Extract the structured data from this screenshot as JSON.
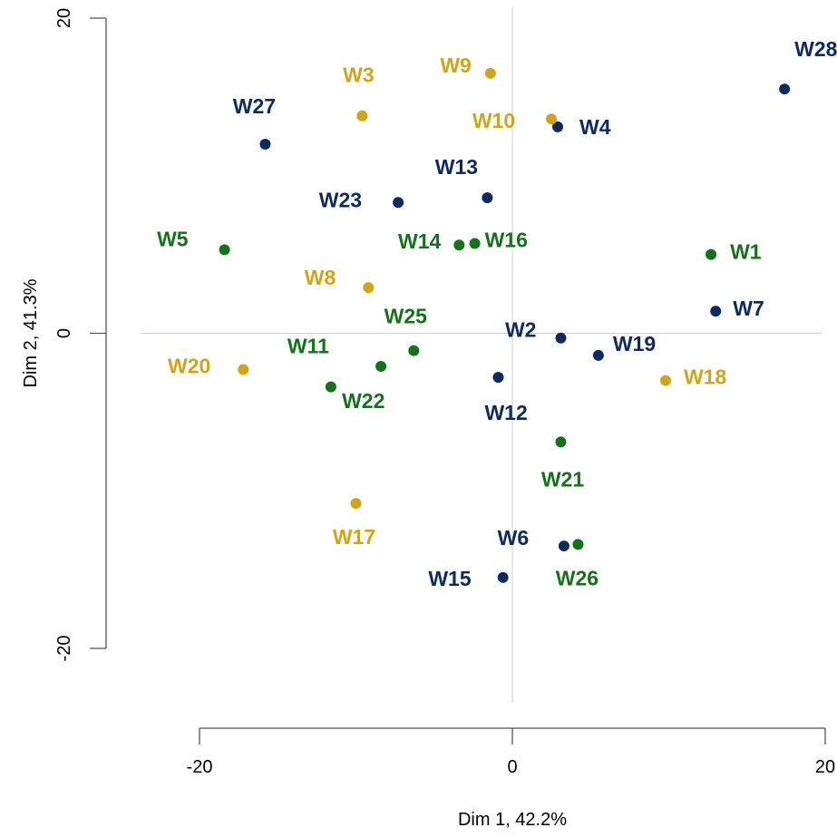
{
  "chart_data": {
    "type": "scatter",
    "xlabel": "Dim 1, 42.2%",
    "ylabel": "Dim 2, 41.3%",
    "xlim": [
      -20,
      20
    ],
    "ylim": [
      -20,
      20
    ],
    "xticks": [
      -20,
      0,
      20
    ],
    "yticks": [
      -20,
      0,
      20
    ],
    "xtick_labels": [
      "-20",
      "0",
      "20"
    ],
    "ytick_labels": [
      "-20",
      "0",
      "20"
    ],
    "reference_lines": {
      "x": 0,
      "y": 0
    },
    "grid": false,
    "colors": {
      "navy": "#0d2a63",
      "gold": "#d4a418",
      "green": "#13721a"
    },
    "points": [
      {
        "label": "W1",
        "x": 12.7,
        "y": 5.0,
        "color": "green"
      },
      {
        "label": "W2",
        "x": 3.1,
        "y": -0.3,
        "color": "navy"
      },
      {
        "label": "W3",
        "x": -9.6,
        "y": 13.8,
        "color": "gold"
      },
      {
        "label": "W4",
        "x": 2.9,
        "y": 13.1,
        "color": "navy"
      },
      {
        "label": "W5",
        "x": -18.4,
        "y": 5.3,
        "color": "green"
      },
      {
        "label": "W6",
        "x": 3.3,
        "y": -13.5,
        "color": "navy"
      },
      {
        "label": "W7",
        "x": 13.0,
        "y": 1.4,
        "color": "navy"
      },
      {
        "label": "W8",
        "x": -9.2,
        "y": 2.9,
        "color": "gold"
      },
      {
        "label": "W9",
        "x": -1.4,
        "y": 16.5,
        "color": "gold"
      },
      {
        "label": "W10",
        "x": 2.5,
        "y": 13.6,
        "color": "gold"
      },
      {
        "label": "W11",
        "x": -11.6,
        "y": -3.4,
        "color": "green"
      },
      {
        "label": "W12",
        "x": -0.9,
        "y": -2.8,
        "color": "navy"
      },
      {
        "label": "W13",
        "x": -1.6,
        "y": 8.6,
        "color": "navy"
      },
      {
        "label": "W14",
        "x": -3.4,
        "y": 5.6,
        "color": "green"
      },
      {
        "label": "W15",
        "x": -0.6,
        "y": -15.5,
        "color": "navy"
      },
      {
        "label": "W16",
        "x": -2.4,
        "y": 5.7,
        "color": "green"
      },
      {
        "label": "W17",
        "x": -10.0,
        "y": -10.8,
        "color": "gold"
      },
      {
        "label": "W18",
        "x": 9.8,
        "y": -3.0,
        "color": "gold"
      },
      {
        "label": "W19",
        "x": 5.5,
        "y": -1.4,
        "color": "navy"
      },
      {
        "label": "W20",
        "x": -17.2,
        "y": -2.3,
        "color": "gold"
      },
      {
        "label": "W21",
        "x": 3.1,
        "y": -6.9,
        "color": "green"
      },
      {
        "label": "W22",
        "x": -8.4,
        "y": -2.1,
        "color": "green"
      },
      {
        "label": "W23",
        "x": -7.3,
        "y": 8.3,
        "color": "navy"
      },
      {
        "label": "W25",
        "x": -6.3,
        "y": -1.1,
        "color": "green"
      },
      {
        "label": "W26",
        "x": 4.2,
        "y": -13.4,
        "color": "green"
      },
      {
        "label": "W27",
        "x": -15.8,
        "y": 12.0,
        "color": "navy"
      },
      {
        "label": "W28",
        "x": 17.4,
        "y": 15.5,
        "color": "navy"
      }
    ]
  }
}
